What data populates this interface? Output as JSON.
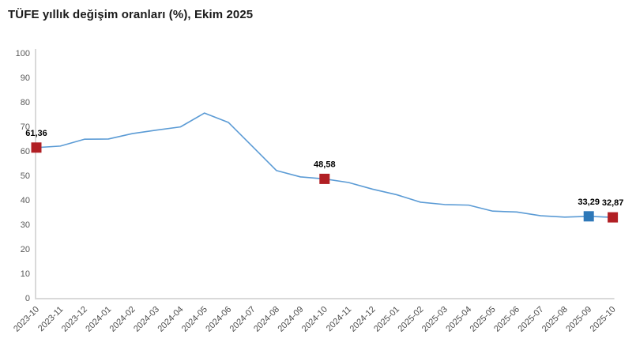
{
  "page": {
    "title": "TÜFE yıllık değişim oranları (%), Ekim 2025"
  },
  "colors": {
    "line": "#5b9bd5",
    "marker_red": "#b11f24",
    "marker_blue": "#2e78b8",
    "axis_line": "#d9d9d9",
    "ytick_label": "#595959",
    "xtick_label": "#4d4d4d",
    "title_text": "#1a1a1a",
    "point_label": "#000000",
    "background": "#ffffff"
  },
  "chart_data": {
    "type": "line",
    "title": "TÜFE yıllık değişim oranları (%), Ekim 2025",
    "x": [
      "2023-10",
      "2023-11",
      "2023-12",
      "2024-01",
      "2024-02",
      "2024-03",
      "2024-04",
      "2024-05",
      "2024-06",
      "2024-07",
      "2024-08",
      "2024-09",
      "2024-10",
      "2024-11",
      "2024-12",
      "2025-01",
      "2025-02",
      "2025-03",
      "2025-04",
      "2025-05",
      "2025-06",
      "2025-07",
      "2025-08",
      "2025-09",
      "2025-10"
    ],
    "series": [
      {
        "name": "TÜFE yıllık değişim oranı (%)",
        "values": [
          61.36,
          61.98,
          64.77,
          64.86,
          67.07,
          68.5,
          69.8,
          75.45,
          71.6,
          61.78,
          51.97,
          49.38,
          48.58,
          47.09,
          44.38,
          42.12,
          39.05,
          38.1,
          37.86,
          35.41,
          35.05,
          33.52,
          32.95,
          33.29,
          32.87
        ]
      }
    ],
    "ylim": [
      0,
      100
    ],
    "yticks": [
      0,
      10,
      20,
      30,
      40,
      50,
      60,
      70,
      80,
      90,
      100
    ],
    "grid": false,
    "legend": "none",
    "annotated_points": [
      {
        "index": 0,
        "x": "2023-10",
        "value": 61.36,
        "label": "61,36",
        "marker_color": "red"
      },
      {
        "index": 12,
        "x": "2024-10",
        "value": 48.58,
        "label": "48,58",
        "marker_color": "red"
      },
      {
        "index": 23,
        "x": "2025-09",
        "value": 33.29,
        "label": "33,29",
        "marker_color": "blue"
      },
      {
        "index": 24,
        "x": "2025-10",
        "value": 32.87,
        "label": "32,87",
        "marker_color": "red"
      }
    ]
  }
}
